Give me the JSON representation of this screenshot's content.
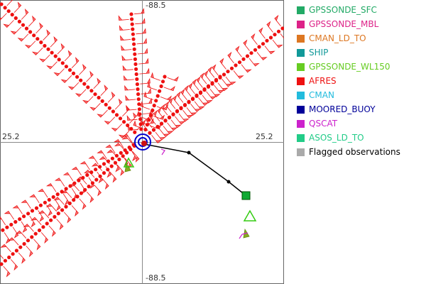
{
  "chart_data": {
    "type": "scatter",
    "axes": {
      "top": "-88.5",
      "bottom": "-88.5",
      "left": "25.2",
      "right": "25.2"
    },
    "legend_placement": "right",
    "legend": [
      {
        "label": "GPSSONDE_SFC",
        "color": "#22aa66"
      },
      {
        "label": "GPSSONDE_MBL",
        "color": "#dd2288"
      },
      {
        "label": "CMAN_LD_TO",
        "color": "#dd7722"
      },
      {
        "label": "SHIP",
        "color": "#119999"
      },
      {
        "label": "GPSSONDE_WL150",
        "color": "#66cc22"
      },
      {
        "label": "AFRES",
        "color": "#ee1111"
      },
      {
        "label": "CMAN",
        "color": "#22bbdd"
      },
      {
        "label": "MOORED_BUOY",
        "color": "#000099"
      },
      {
        "label": "QSCAT",
        "color": "#cc22cc"
      },
      {
        "label": "ASOS_LD_TO",
        "color": "#22cc88"
      },
      {
        "label": "Flagged observations",
        "color": "#aaaaaa"
      }
    ]
  }
}
